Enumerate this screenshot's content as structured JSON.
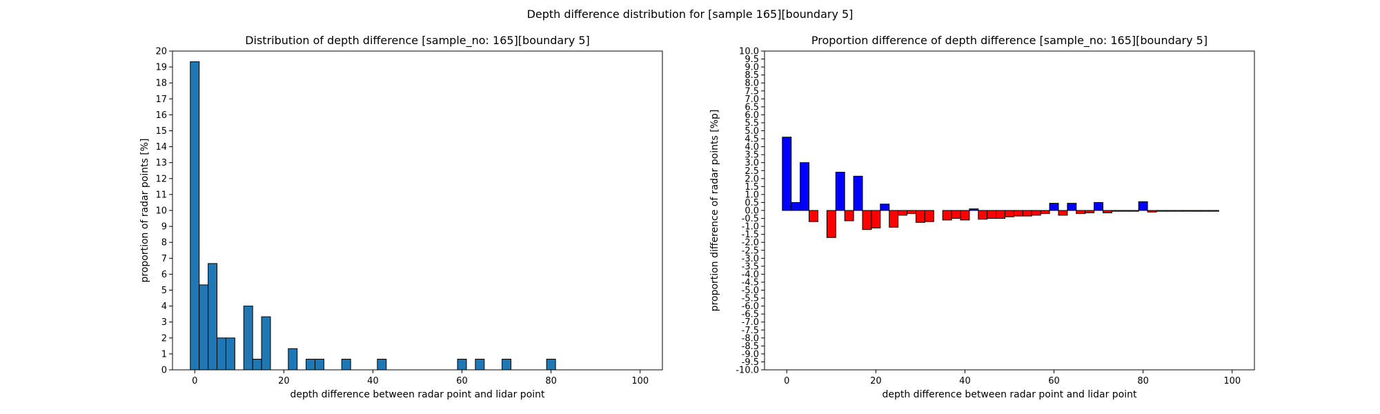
{
  "figure": {
    "title": "Depth difference distribution for [sample 165][boundary 5]"
  },
  "chart_data": [
    {
      "type": "bar",
      "title": "Distribution of depth difference [sample_no: 165][boundary 5]",
      "xlabel": "depth difference between radar point and lidar point",
      "ylabel": "proportion of radar points [%]",
      "xlim": [
        -5,
        105
      ],
      "ylim": [
        0,
        20
      ],
      "x_ticks": [
        0,
        20,
        40,
        60,
        80,
        100
      ],
      "y_ticks": [
        0,
        1,
        2,
        3,
        4,
        5,
        6,
        7,
        8,
        9,
        10,
        11,
        12,
        13,
        14,
        15,
        16,
        17,
        18,
        19,
        20
      ],
      "bar_width": 2,
      "bar_color": "#1f77b4",
      "edge_color": "#000000",
      "x": [
        0,
        2,
        4,
        6,
        8,
        10,
        12,
        14,
        16,
        18,
        20,
        22,
        24,
        26,
        28,
        30,
        32,
        34,
        36,
        38,
        40,
        42,
        44,
        46,
        48,
        50,
        52,
        54,
        56,
        58,
        60,
        62,
        64,
        66,
        68,
        70,
        72,
        74,
        76,
        78,
        80,
        82,
        84,
        86,
        88,
        90,
        92,
        94,
        96,
        98
      ],
      "values": [
        19.33,
        5.33,
        6.67,
        2.0,
        2.0,
        0,
        4.0,
        0.67,
        3.33,
        0,
        0,
        1.33,
        0,
        0.67,
        0.67,
        0,
        0,
        0.67,
        0,
        0,
        0,
        0.67,
        0,
        0,
        0,
        0,
        0,
        0,
        0,
        0,
        0.67,
        0,
        0.67,
        0,
        0,
        0.67,
        0,
        0,
        0,
        0,
        0.67,
        0,
        0,
        0,
        0,
        0,
        0,
        0,
        0,
        0
      ]
    },
    {
      "type": "bar",
      "title": "Proportion difference of depth difference [sample_no: 165][boundary 5]",
      "xlabel": "depth difference between radar point and lidar point",
      "ylabel": "proportion difference of radar points [%p]",
      "xlim": [
        -5,
        105
      ],
      "ylim": [
        -10,
        10
      ],
      "x_ticks": [
        0,
        20,
        40,
        60,
        80,
        100
      ],
      "y_ticks": [
        -10.0,
        -9.5,
        -9.0,
        -8.5,
        -8.0,
        -7.5,
        -7.0,
        -6.5,
        -6.0,
        -5.5,
        -5.0,
        -4.5,
        -4.0,
        -3.5,
        -3.0,
        -2.5,
        -2.0,
        -1.5,
        -1.0,
        -0.5,
        0.0,
        0.5,
        1.0,
        1.5,
        2.0,
        2.5,
        3.0,
        3.5,
        4.0,
        4.5,
        5.0,
        5.5,
        6.0,
        6.5,
        7.0,
        7.5,
        8.0,
        8.5,
        9.0,
        9.5,
        10.0
      ],
      "bar_width": 2,
      "positive_color": "#0000ff",
      "negative_color": "#ff0000",
      "edge_color": "#000000",
      "x": [
        0,
        2,
        4,
        6,
        8,
        10,
        12,
        14,
        16,
        18,
        20,
        22,
        24,
        26,
        28,
        30,
        32,
        34,
        36,
        38,
        40,
        42,
        44,
        46,
        48,
        50,
        52,
        54,
        56,
        58,
        60,
        62,
        64,
        66,
        68,
        70,
        72,
        74,
        76,
        78,
        80,
        82,
        84,
        86,
        88,
        90,
        92,
        94,
        96,
        98
      ],
      "values": [
        4.6,
        0.5,
        3.0,
        -0.7,
        0,
        -1.7,
        2.4,
        -0.65,
        2.15,
        -1.2,
        -1.1,
        0.4,
        -1.05,
        -0.3,
        -0.2,
        -0.75,
        -0.7,
        0,
        -0.6,
        -0.5,
        -0.6,
        0.1,
        -0.55,
        -0.5,
        -0.5,
        -0.4,
        -0.35,
        -0.35,
        -0.3,
        -0.2,
        0.45,
        -0.3,
        0.45,
        -0.2,
        -0.15,
        0.5,
        -0.15,
        -0.05,
        -0.05,
        -0.05,
        0.55,
        -0.1,
        -0.05,
        -0.05,
        -0.05,
        -0.05,
        -0.05,
        -0.05,
        -0.05,
        0
      ]
    }
  ]
}
